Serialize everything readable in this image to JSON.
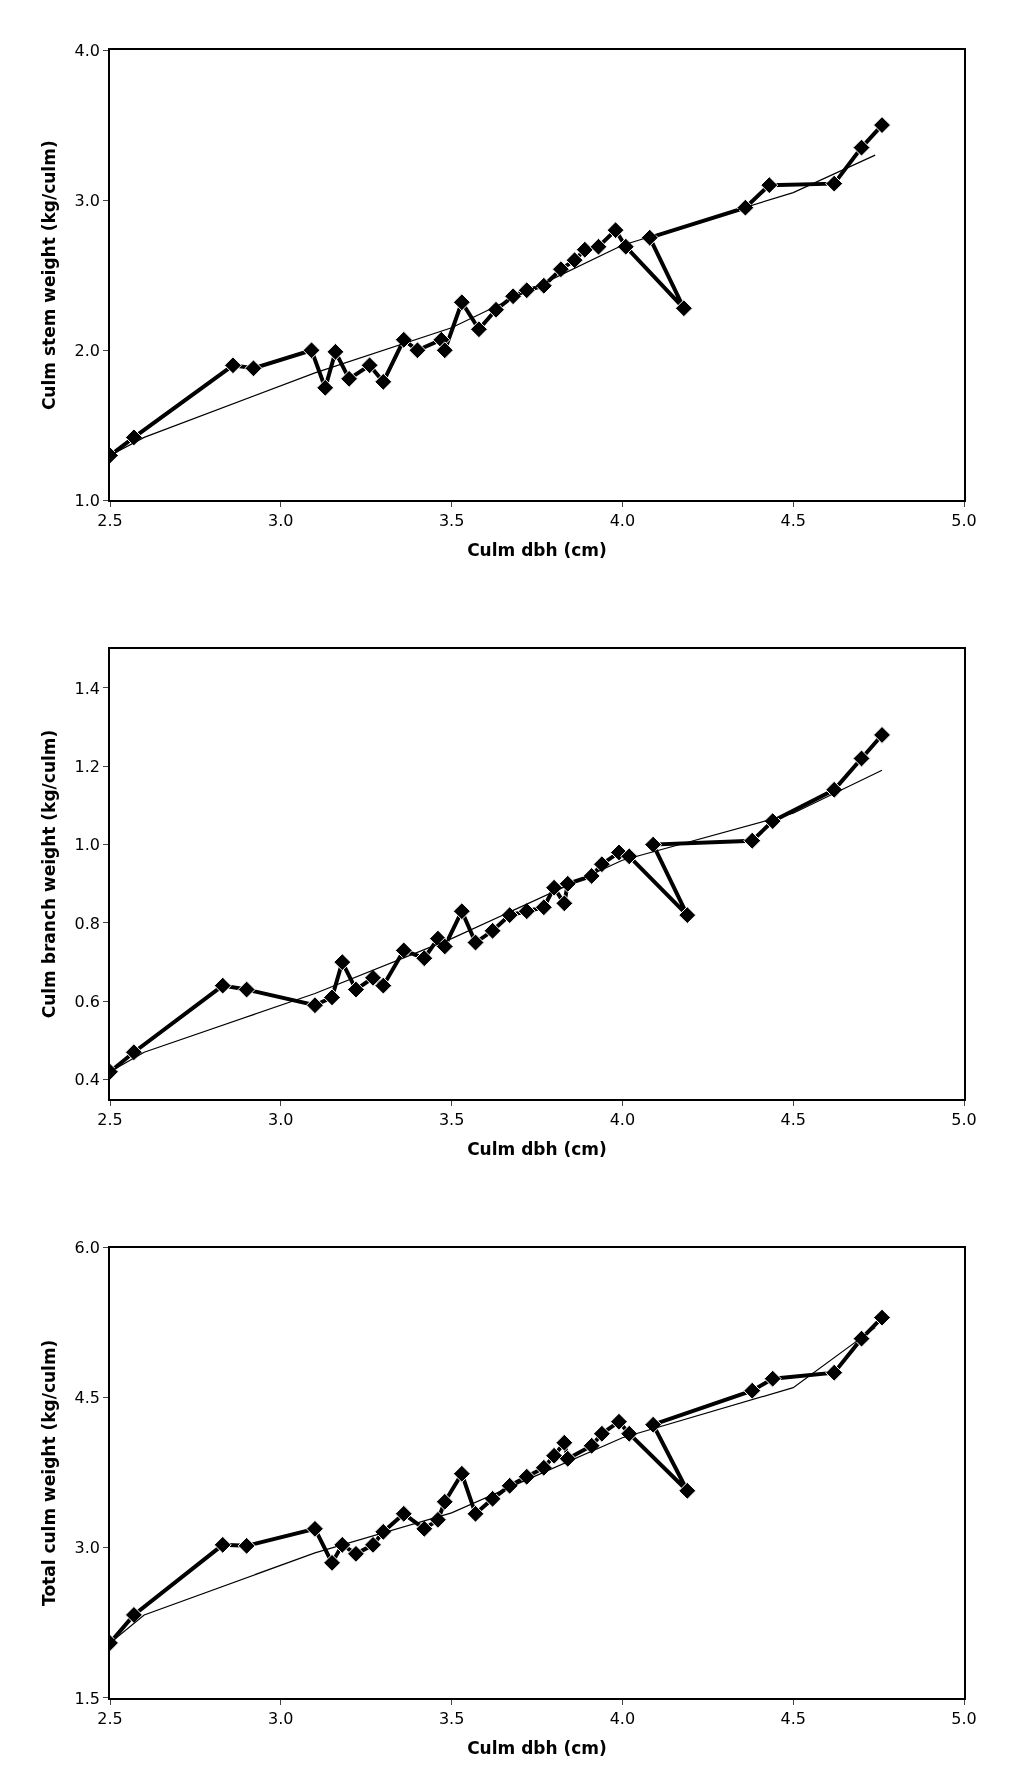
{
  "chart_data": [
    {
      "type": "line",
      "xlabel": "Culm dbh (cm)",
      "ylabel": "Culm stem weight (kg/culm)",
      "xlim": [
        2.5,
        5.0
      ],
      "xticks": [
        {
          "value": 2.5,
          "label": "2.5"
        },
        {
          "value": 3.0,
          "label": "3.0"
        },
        {
          "value": 3.5,
          "label": "3.5"
        },
        {
          "value": 4.0,
          "label": "4.0"
        },
        {
          "value": 4.5,
          "label": "4.5"
        },
        {
          "value": 5.0,
          "label": "5.0"
        }
      ],
      "ylim": [
        1.0,
        4.0
      ],
      "yticks": [
        {
          "value": 1.0,
          "label": "1.0"
        },
        {
          "value": 2.0,
          "label": "2.0"
        },
        {
          "value": 3.0,
          "label": "3.0"
        },
        {
          "value": 4.0,
          "label": "4.0"
        }
      ],
      "grid": false,
      "series": [
        {
          "color": "#000000",
          "marker": "diamond",
          "x": [
            2.5,
            2.57,
            2.86,
            2.92,
            3.09,
            3.13,
            3.16,
            3.2,
            3.26,
            3.3,
            3.36,
            3.4,
            3.47,
            3.48,
            3.53,
            3.58,
            3.63,
            3.68,
            3.72,
            3.77,
            3.82,
            3.86,
            3.89,
            3.93,
            3.98,
            4.01,
            4.18,
            4.08,
            4.36,
            4.43,
            4.62,
            4.7,
            4.76
          ],
          "values": [
            1.3,
            1.42,
            1.9,
            1.88,
            2.0,
            1.75,
            1.99,
            1.81,
            1.9,
            1.79,
            2.07,
            2.0,
            2.07,
            2.0,
            2.32,
            2.14,
            2.27,
            2.36,
            2.4,
            2.43,
            2.54,
            2.6,
            2.67,
            2.69,
            2.8,
            2.69,
            2.28,
            2.75,
            2.95,
            3.1,
            3.11,
            3.35,
            3.5
          ]
        },
        {
          "color": "#000000",
          "marker": "none",
          "x": [
            2.5,
            2.6,
            3.1,
            3.5,
            4.0,
            4.5,
            4.74
          ],
          "values": [
            1.3,
            1.42,
            1.85,
            2.15,
            2.7,
            3.05,
            3.3
          ]
        }
      ]
    },
    {
      "type": "line",
      "xlabel": "Culm dbh (cm)",
      "ylabel": "Culm branch weight (kg/culm)",
      "xlim": [
        2.5,
        5.0
      ],
      "xticks": [
        {
          "value": 2.5,
          "label": "2.5"
        },
        {
          "value": 3.0,
          "label": "3.0"
        },
        {
          "value": 3.5,
          "label": "3.5"
        },
        {
          "value": 4.0,
          "label": "4.0"
        },
        {
          "value": 4.5,
          "label": "4.5"
        },
        {
          "value": 5.0,
          "label": "5.0"
        }
      ],
      "ylim": [
        0.35,
        1.5
      ],
      "yticks": [
        0.4,
        0.6,
        0.8,
        {
          "value": 1.0,
          "label": "1.0"
        },
        1.2,
        1.4
      ],
      "grid": false,
      "series": [
        {
          "color": "#000000",
          "marker": "diamond",
          "x": [
            2.5,
            2.57,
            2.83,
            2.9,
            3.1,
            3.15,
            3.18,
            3.22,
            3.27,
            3.3,
            3.36,
            3.42,
            3.46,
            3.48,
            3.53,
            3.57,
            3.62,
            3.67,
            3.72,
            3.77,
            3.8,
            3.83,
            3.84,
            3.91,
            3.94,
            3.99,
            4.02,
            4.19,
            4.09,
            4.38,
            4.44,
            4.62,
            4.7,
            4.76
          ],
          "values": [
            0.42,
            0.47,
            0.64,
            0.63,
            0.59,
            0.61,
            0.7,
            0.63,
            0.66,
            0.64,
            0.73,
            0.71,
            0.76,
            0.74,
            0.83,
            0.75,
            0.78,
            0.82,
            0.83,
            0.84,
            0.89,
            0.85,
            0.9,
            0.92,
            0.95,
            0.98,
            0.97,
            0.82,
            1.0,
            1.01,
            1.06,
            1.14,
            1.22,
            1.28
          ]
        },
        {
          "color": "#000000",
          "marker": "none",
          "x": [
            2.5,
            2.6,
            3.1,
            3.5,
            4.0,
            4.5,
            4.76
          ],
          "values": [
            0.42,
            0.47,
            0.62,
            0.76,
            0.96,
            1.08,
            1.19
          ]
        }
      ]
    },
    {
      "type": "line",
      "xlabel": "Culm dbh (cm)",
      "ylabel": "Total culm weight (kg/culm)",
      "xlim": [
        2.5,
        5.0
      ],
      "xticks": [
        {
          "value": 2.5,
          "label": "2.5"
        },
        {
          "value": 3.0,
          "label": "3.0"
        },
        {
          "value": 3.5,
          "label": "3.5"
        },
        {
          "value": 4.0,
          "label": "4.0"
        },
        {
          "value": 4.5,
          "label": "4.5"
        },
        {
          "value": 5.0,
          "label": "5.0"
        }
      ],
      "ylim": [
        1.5,
        6.0
      ],
      "yticks": [
        1.5,
        {
          "value": 3.0,
          "label": "3.0"
        },
        4.5,
        {
          "value": 6.0,
          "label": "6.0"
        }
      ],
      "grid": false,
      "series": [
        {
          "color": "#000000",
          "marker": "diamond",
          "x": [
            2.5,
            2.57,
            2.83,
            2.9,
            3.1,
            3.15,
            3.18,
            3.22,
            3.27,
            3.3,
            3.36,
            3.42,
            3.46,
            3.48,
            3.53,
            3.57,
            3.62,
            3.67,
            3.72,
            3.77,
            3.8,
            3.83,
            3.84,
            3.91,
            3.94,
            3.99,
            4.02,
            4.19,
            4.09,
            4.38,
            4.44,
            4.62,
            4.7,
            4.76
          ],
          "values": [
            2.05,
            2.33,
            3.03,
            3.02,
            3.19,
            2.85,
            3.03,
            2.94,
            3.03,
            3.16,
            3.34,
            3.19,
            3.28,
            3.46,
            3.74,
            3.34,
            3.49,
            3.62,
            3.71,
            3.8,
            3.92,
            4.05,
            3.89,
            4.02,
            4.14,
            4.26,
            4.14,
            3.57,
            4.23,
            4.57,
            4.69,
            4.75,
            5.09,
            5.3
          ]
        },
        {
          "color": "#000000",
          "marker": "none",
          "x": [
            2.5,
            2.6,
            3.1,
            3.5,
            4.0,
            4.5,
            4.74
          ],
          "values": [
            2.05,
            2.33,
            2.95,
            3.35,
            4.1,
            4.6,
            5.2
          ]
        }
      ]
    }
  ]
}
